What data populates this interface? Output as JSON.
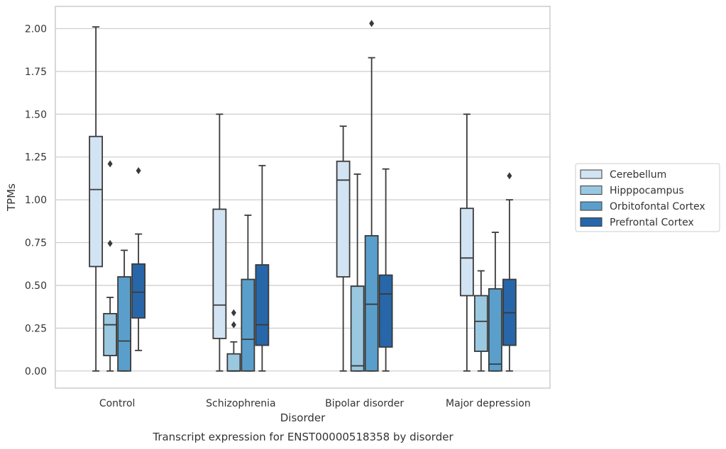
{
  "caption": "Transcript expression for ENST00000518358 by disorder",
  "chart_data": {
    "type": "box",
    "title": "",
    "xlabel": "Disorder",
    "ylabel": "TPMs",
    "categories": [
      "Control",
      "Schizophrenia",
      "Bipolar disorder",
      "Major depression"
    ],
    "ylim": [
      -0.1,
      2.13
    ],
    "yticks": [
      0.0,
      0.25,
      0.5,
      0.75,
      1.0,
      1.25,
      1.5,
      1.75,
      2.0
    ],
    "ytick_labels": [
      "0.00",
      "0.25",
      "0.50",
      "0.75",
      "1.00",
      "1.25",
      "1.50",
      "1.75",
      "2.00"
    ],
    "grid": "horizontal",
    "legend_position": "right",
    "series": [
      {
        "name": "Cerebellum",
        "color": "#d2e3f3",
        "boxes": [
          {
            "whislo": 0.0,
            "q1": 0.61,
            "med": 1.06,
            "q3": 1.37,
            "whishi": 2.01,
            "fliers": []
          },
          {
            "whislo": 0.0,
            "q1": 0.19,
            "med": 0.385,
            "q3": 0.945,
            "whishi": 1.5,
            "fliers": []
          },
          {
            "whislo": 0.0,
            "q1": 0.55,
            "med": 1.115,
            "q3": 1.225,
            "whishi": 1.43,
            "fliers": []
          },
          {
            "whislo": 0.0,
            "q1": 0.44,
            "med": 0.66,
            "q3": 0.95,
            "whishi": 1.5,
            "fliers": []
          }
        ]
      },
      {
        "name": "Hipppocampus",
        "color": "#9ac8e0",
        "boxes": [
          {
            "whislo": 0.0,
            "q1": 0.09,
            "med": 0.27,
            "q3": 0.335,
            "whishi": 0.43,
            "fliers": [
              0.745,
              1.21
            ]
          },
          {
            "whislo": 0.0,
            "q1": 0.0,
            "med": 0.0,
            "q3": 0.1,
            "whishi": 0.17,
            "fliers": [
              0.27,
              0.34
            ]
          },
          {
            "whislo": 0.0,
            "q1": 0.0,
            "med": 0.03,
            "q3": 0.495,
            "whishi": 1.15,
            "fliers": []
          },
          {
            "whislo": 0.0,
            "q1": 0.115,
            "med": 0.29,
            "q3": 0.44,
            "whishi": 0.585,
            "fliers": []
          }
        ]
      },
      {
        "name": "Orbitofontal Cortex",
        "color": "#5a9fcb",
        "boxes": [
          {
            "whislo": 0.0,
            "q1": 0.0,
            "med": 0.175,
            "q3": 0.55,
            "whishi": 0.705,
            "fliers": []
          },
          {
            "whislo": 0.0,
            "q1": 0.0,
            "med": 0.185,
            "q3": 0.535,
            "whishi": 0.91,
            "fliers": []
          },
          {
            "whislo": 0.0,
            "q1": 0.0,
            "med": 0.39,
            "q3": 0.79,
            "whishi": 1.83,
            "fliers": [
              2.03
            ]
          },
          {
            "whislo": 0.0,
            "q1": 0.0,
            "med": 0.04,
            "q3": 0.48,
            "whishi": 0.81,
            "fliers": []
          }
        ]
      },
      {
        "name": "Prefrontal Cortex",
        "color": "#2767a9",
        "boxes": [
          {
            "whislo": 0.12,
            "q1": 0.31,
            "med": 0.46,
            "q3": 0.625,
            "whishi": 0.8,
            "fliers": [
              1.17
            ]
          },
          {
            "whislo": 0.0,
            "q1": 0.15,
            "med": 0.27,
            "q3": 0.62,
            "whishi": 1.2,
            "fliers": []
          },
          {
            "whislo": 0.0,
            "q1": 0.14,
            "med": 0.45,
            "q3": 0.56,
            "whishi": 1.18,
            "fliers": []
          },
          {
            "whislo": 0.0,
            "q1": 0.15,
            "med": 0.34,
            "q3": 0.535,
            "whishi": 1.0,
            "fliers": [
              1.14
            ]
          }
        ]
      }
    ]
  }
}
